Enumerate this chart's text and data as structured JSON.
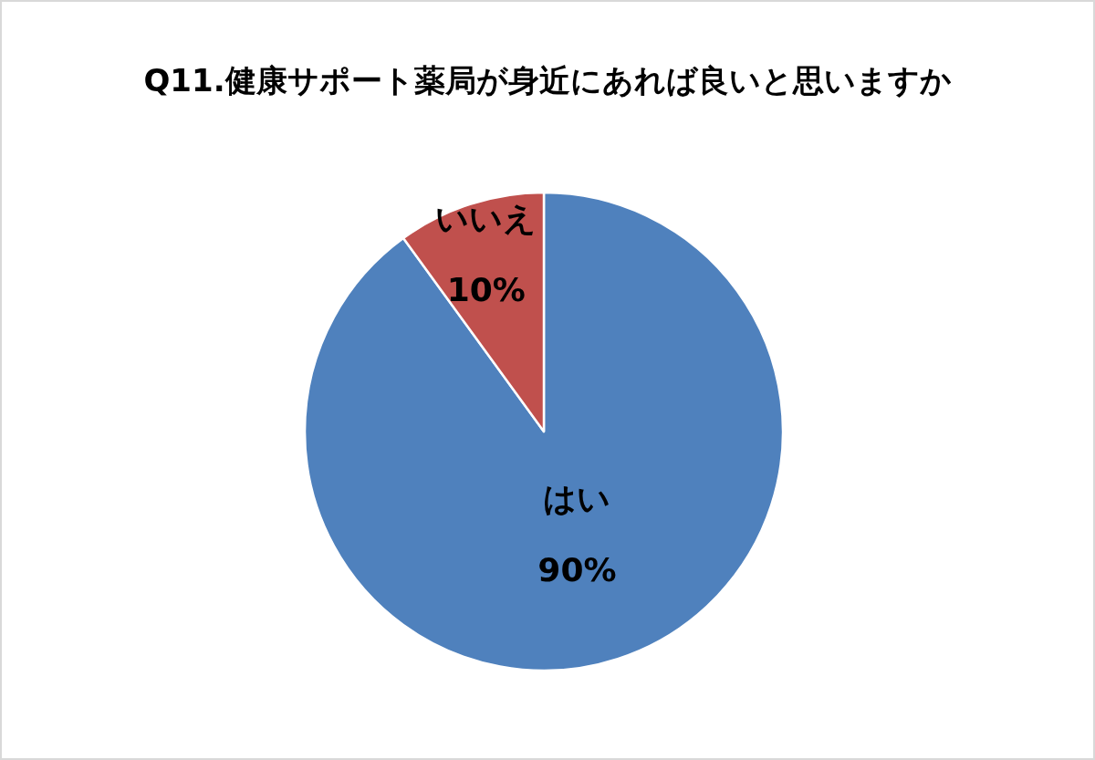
{
  "chart_data": {
    "type": "pie",
    "title": "Q11.健康サポート薬局が身近にあれば良いと思いますか",
    "categories": [
      "はい",
      "いいえ"
    ],
    "values": [
      90,
      10
    ],
    "colors": [
      "#4f81bd",
      "#c0504d"
    ],
    "value_labels": [
      "90%",
      "10%"
    ]
  }
}
